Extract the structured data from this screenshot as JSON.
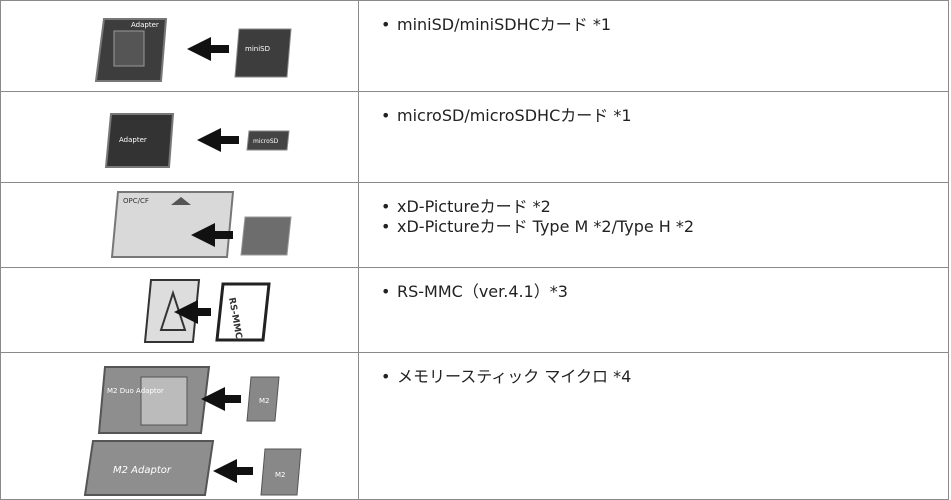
{
  "rows": [
    {
      "items": [
        "miniSD/miniSDHCカード *1"
      ],
      "image_labels": [
        "Adapter",
        "miniSD"
      ]
    },
    {
      "items": [
        "microSD/microSDHCカード *1"
      ],
      "image_labels": [
        "Adapter",
        "microSD"
      ]
    },
    {
      "items": [
        "xD-Pictureカード *2",
        "xD-Pictureカード Type M *2/Type H *2"
      ],
      "image_labels": [
        "OPC/CF"
      ]
    },
    {
      "items": [
        "RS-MMC（ver.4.1）*3"
      ],
      "image_labels": [
        "RS-MMC"
      ]
    },
    {
      "items": [
        "メモリースティック マイクロ *4"
      ],
      "image_labels": [
        "M2 Duo Adaptor",
        "M2",
        "M2 Adaptor",
        "M2"
      ]
    }
  ]
}
